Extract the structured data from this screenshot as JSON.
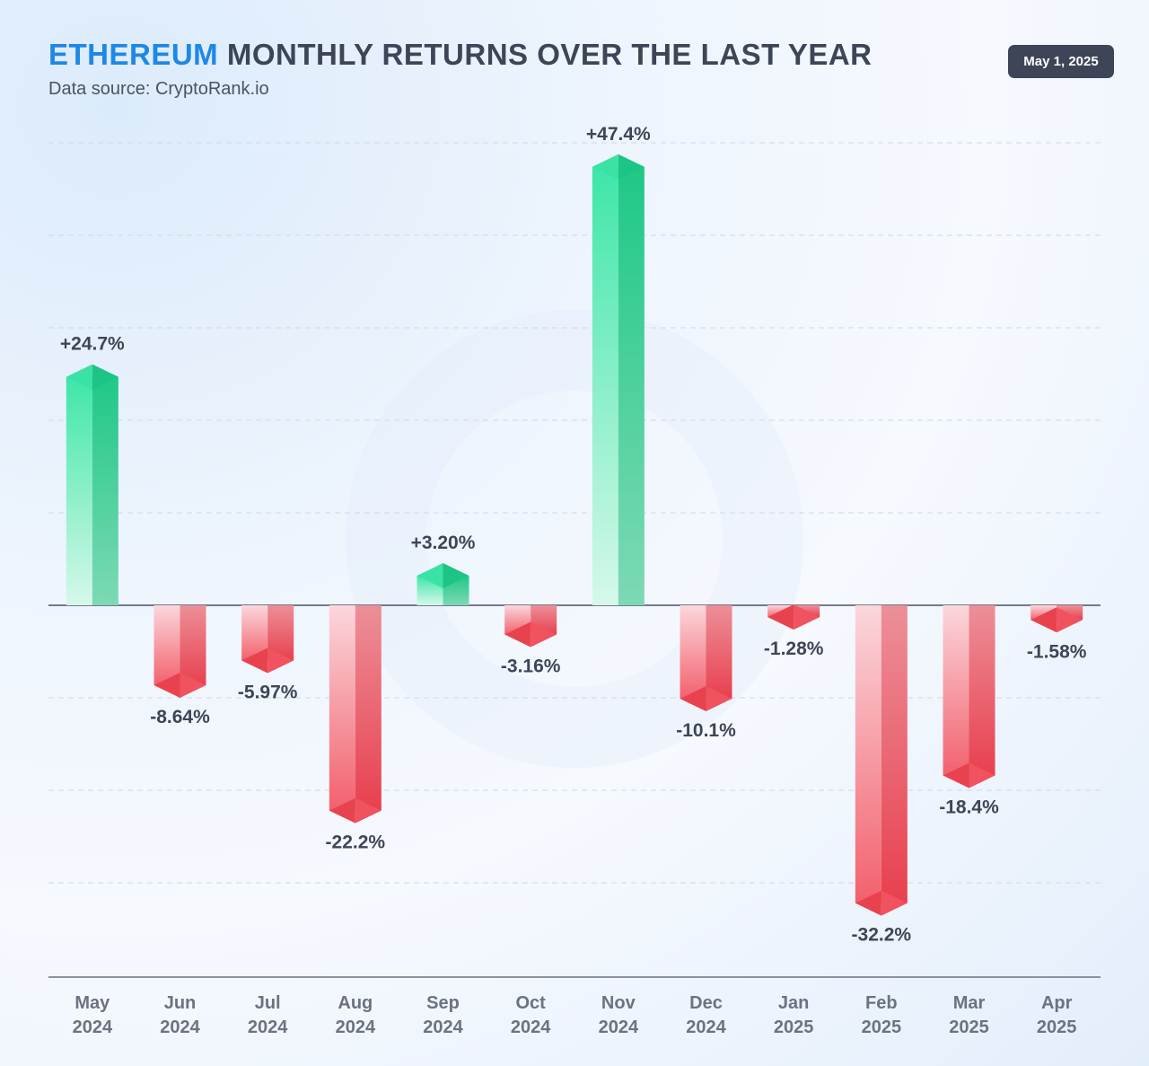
{
  "header": {
    "title_accent": "ETHEREUM",
    "title_rest": " MONTHLY RETURNS OVER THE LAST YEAR",
    "subtitle": "Data source: CryptoRank.io",
    "date": "May 1, 2025"
  },
  "colors": {
    "positive": "#1fcf8e",
    "negative": "#ef4655",
    "accent": "#1e88e5",
    "text": "#3d4557"
  },
  "chart_data": {
    "type": "bar",
    "title": "ETHEREUM MONTHLY RETURNS OVER THE LAST YEAR",
    "categories": [
      [
        "May",
        "2024"
      ],
      [
        "Jun",
        "2024"
      ],
      [
        "Jul",
        "2024"
      ],
      [
        "Aug",
        "2024"
      ],
      [
        "Sep",
        "2024"
      ],
      [
        "Oct",
        "2024"
      ],
      [
        "Nov",
        "2024"
      ],
      [
        "Dec",
        "2024"
      ],
      [
        "Jan",
        "2025"
      ],
      [
        "Feb",
        "2025"
      ],
      [
        "Mar",
        "2025"
      ],
      [
        "Apr",
        "2025"
      ]
    ],
    "values": [
      24.7,
      -8.64,
      -5.97,
      -22.2,
      3.2,
      -3.16,
      47.4,
      -10.1,
      -1.28,
      -32.2,
      -18.4,
      -1.58
    ],
    "value_labels": [
      "+24.7%",
      "-8.64%",
      "-5.97%",
      "-22.2%",
      "+3.20%",
      "-3.16%",
      "+47.4%",
      "-10.1%",
      "-1.28%",
      "-32.2%",
      "-18.4%",
      "-1.58%"
    ],
    "ylim": [
      -40,
      50
    ],
    "grid": true
  }
}
